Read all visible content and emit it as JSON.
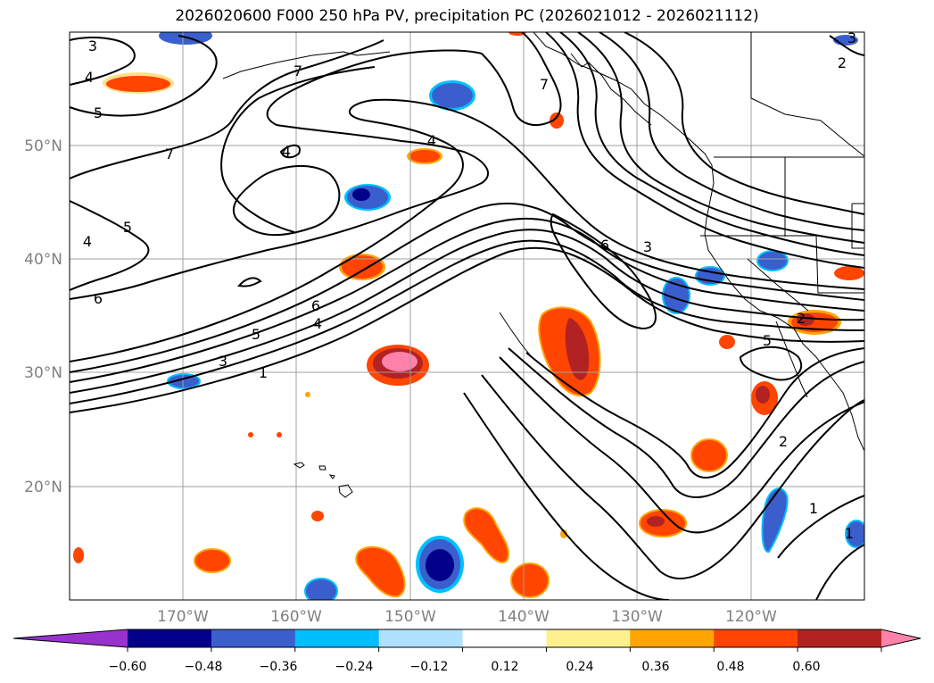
{
  "title": "2026020600 F000 250 hPa PV, precipitation PC (2026021012 - 2026021112)",
  "map": {
    "lat_labels": [
      "50°N",
      "40°N",
      "30°N",
      "20°N"
    ],
    "lon_labels": [
      "170°W",
      "160°W",
      "150°W",
      "140°W",
      "130°W",
      "120°W"
    ],
    "gridline_color": "#a0a0a0",
    "tick_label_color": "#808080",
    "contour_color": "#000000",
    "contour_labels": [
      "3",
      "4",
      "5",
      "7",
      "4",
      "4",
      "5",
      "4",
      "6",
      "7",
      "7",
      "6",
      "3",
      "2",
      "6",
      "4",
      "5",
      "3",
      "1",
      "5",
      "2",
      "2",
      "1",
      "1",
      "3"
    ]
  },
  "colorbar": {
    "tick_labels": [
      "−0.60",
      "−0.48",
      "−0.36",
      "−0.24",
      "−0.12",
      "0.12",
      "0.24",
      "0.36",
      "0.48",
      "0.60"
    ],
    "colors": [
      "#9932cc",
      "#00008b",
      "#3a5fcd",
      "#00bfff",
      "#b0e2ff",
      "#ffffff",
      "#fff08f",
      "#ffa500",
      "#ff4500",
      "#b22222",
      "#ff82ab"
    ]
  }
}
